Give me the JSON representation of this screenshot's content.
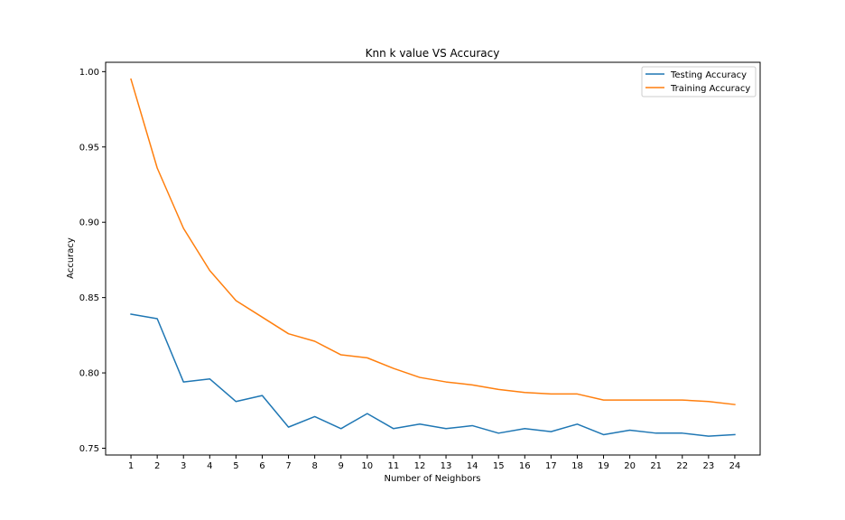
{
  "chart_data": {
    "type": "line",
    "title": "Knn k value VS Accuracy",
    "xlabel": "Number of Neighbors",
    "ylabel": "Accuracy",
    "x": [
      1,
      2,
      3,
      4,
      5,
      6,
      7,
      8,
      9,
      10,
      11,
      12,
      13,
      14,
      15,
      16,
      17,
      18,
      19,
      20,
      21,
      22,
      23,
      24
    ],
    "x_tick_labels": [
      "1",
      "2",
      "3",
      "4",
      "5",
      "6",
      "7",
      "8",
      "9",
      "10",
      "11",
      "12",
      "13",
      "14",
      "15",
      "16",
      "17",
      "18",
      "19",
      "20",
      "21",
      "22",
      "23",
      "24"
    ],
    "xlim": [
      0.035,
      24.965
    ],
    "ylim": [
      0.7455,
      1.0062
    ],
    "y_ticks": [
      0.75,
      0.8,
      0.85,
      0.9,
      0.95,
      1.0
    ],
    "y_tick_labels": [
      "0.75",
      "0.80",
      "0.85",
      "0.90",
      "0.95",
      "1.00"
    ],
    "grid": false,
    "legend_position": "top-right",
    "series": [
      {
        "name": "Testing Accuracy",
        "color": "#1f77b4",
        "values": [
          0.839,
          0.836,
          0.794,
          0.796,
          0.781,
          0.785,
          0.764,
          0.771,
          0.763,
          0.773,
          0.763,
          0.766,
          0.763,
          0.765,
          0.76,
          0.763,
          0.761,
          0.766,
          0.759,
          0.762,
          0.76,
          0.76,
          0.758,
          0.759
        ]
      },
      {
        "name": "Training Accuracy",
        "color": "#ff7f0e",
        "values": [
          0.995,
          0.936,
          0.896,
          0.868,
          0.848,
          0.837,
          0.826,
          0.821,
          0.812,
          0.81,
          0.803,
          0.797,
          0.794,
          0.792,
          0.789,
          0.787,
          0.786,
          0.786,
          0.782,
          0.782,
          0.782,
          0.782,
          0.781,
          0.779
        ]
      }
    ]
  }
}
